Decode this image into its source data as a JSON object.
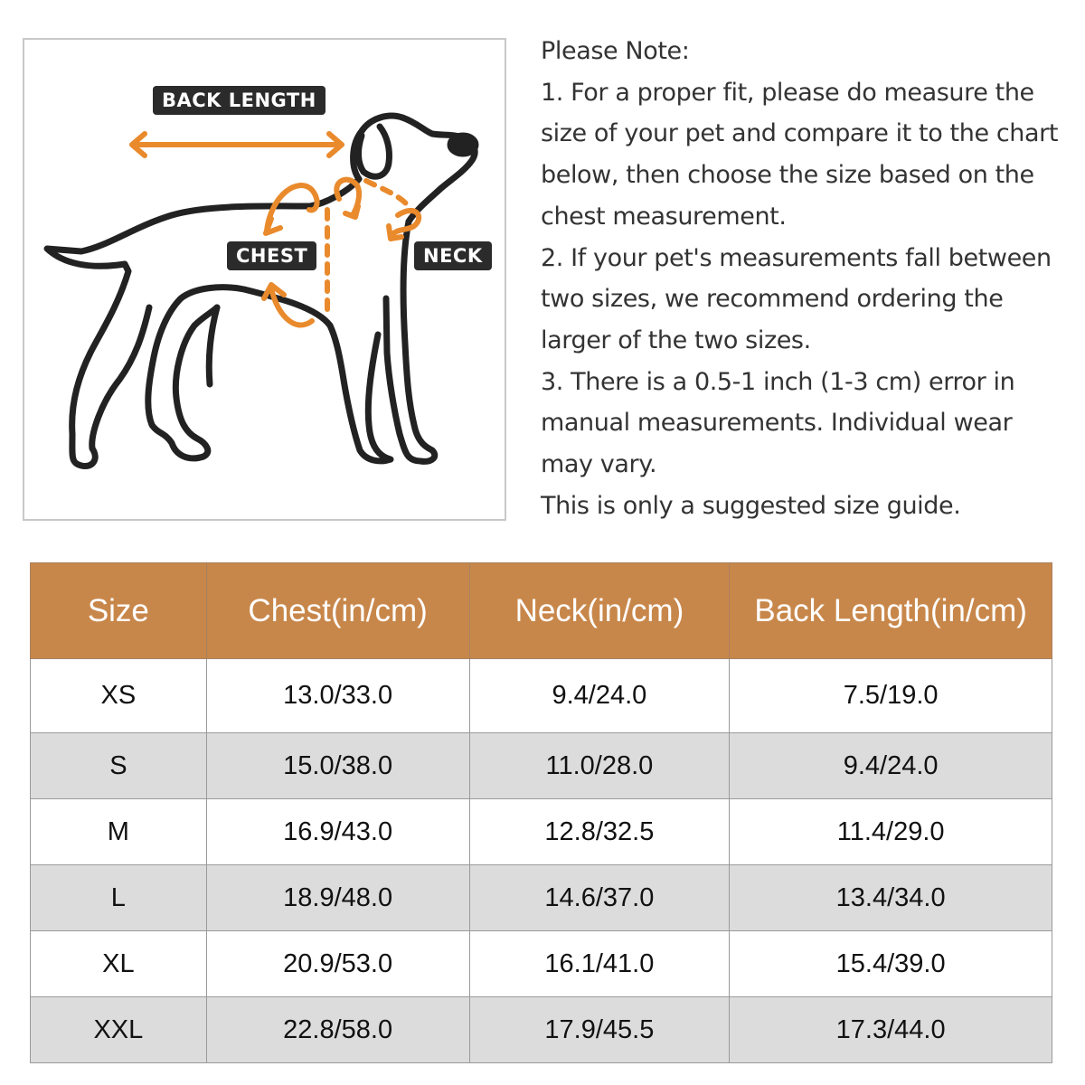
{
  "illustration": {
    "labels": {
      "back_length": "BACK LENGTH",
      "chest": "CHEST",
      "neck": "NECK"
    },
    "accent_color": "#e98a2c",
    "outline_color": "#222222"
  },
  "notes": {
    "lines": [
      "Please Note:",
      "1. For a proper fit, please do measure the",
      "size of your pet and compare it to the chart",
      "below, then choose the size based on the",
      "chest measurement.",
      "2. If your pet's measurements fall between",
      "two sizes, we recommend ordering the",
      "larger of the two sizes.",
      "3. There is a 0.5-1 inch (1-3 cm) error in",
      "manual measurements. Individual wear",
      "may vary.",
      "This is only a suggested size guide."
    ]
  },
  "size_table": {
    "header_color": "#c8874a",
    "columns": [
      "Size",
      "Chest(in/cm)",
      "Neck(in/cm)",
      "Back Length(in/cm)"
    ],
    "rows": [
      [
        "XS",
        "13.0/33.0",
        "9.4/24.0",
        "7.5/19.0"
      ],
      [
        "S",
        "15.0/38.0",
        "11.0/28.0",
        "9.4/24.0"
      ],
      [
        "M",
        "16.9/43.0",
        "12.8/32.5",
        "11.4/29.0"
      ],
      [
        "L",
        "18.9/48.0",
        "14.6/37.0",
        "13.4/34.0"
      ],
      [
        "XL",
        "20.9/53.0",
        "16.1/41.0",
        "15.4/39.0"
      ],
      [
        "XXL",
        "22.8/58.0",
        "17.9/45.5",
        "17.3/44.0"
      ]
    ]
  }
}
